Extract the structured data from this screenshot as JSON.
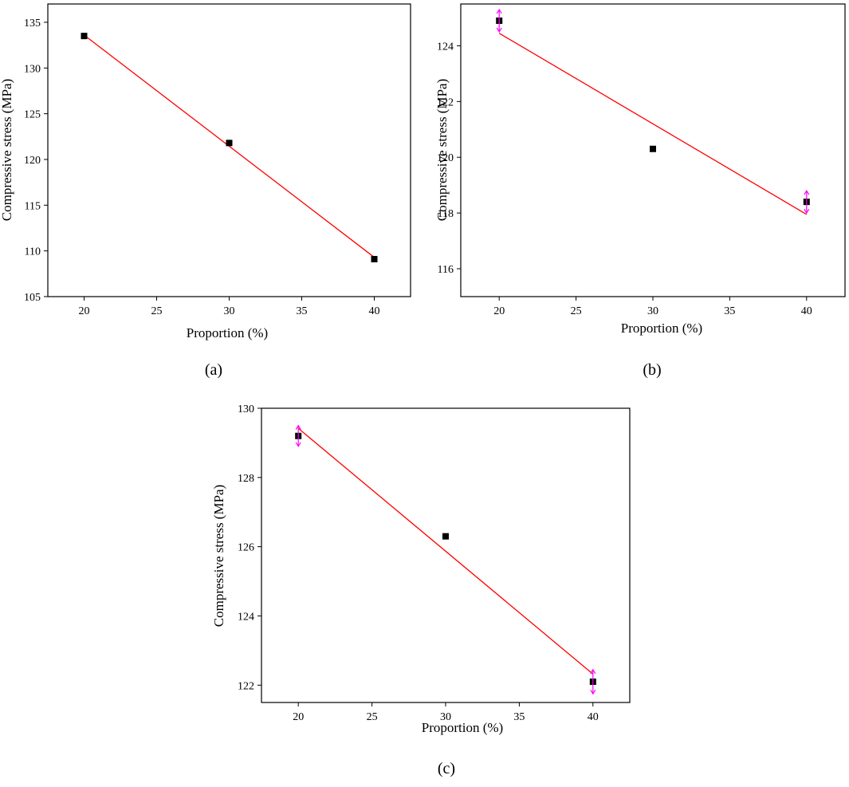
{
  "chart_data": [
    {
      "type": "scatter",
      "caption": "(a)",
      "xlabel": "Proportion (%)",
      "ylabel": "Compressive stress (MPa)",
      "xlim": [
        17.5,
        42.5
      ],
      "ylim": [
        105,
        137
      ],
      "xticks": [
        20,
        25,
        30,
        35,
        40
      ],
      "yticks": [
        105,
        110,
        115,
        120,
        125,
        130,
        135
      ],
      "grid": false,
      "series": [
        {
          "x": [
            20,
            30,
            40
          ],
          "y": [
            133.5,
            121.8,
            109.1
          ],
          "marker": "square",
          "color": "#000000"
        }
      ],
      "fit": {
        "x": [
          20,
          40
        ],
        "y": [
          133.6,
          109.3
        ],
        "color": "#ff0000"
      },
      "error_bars": []
    },
    {
      "type": "scatter",
      "caption": "(b)",
      "xlabel": "Proportion (%)",
      "ylabel": "Compressive stress (MPa)",
      "xlim": [
        17.5,
        42.5
      ],
      "ylim": [
        115,
        125.5
      ],
      "xticks": [
        20,
        25,
        30,
        35,
        40
      ],
      "yticks": [
        116,
        118,
        120,
        122,
        124
      ],
      "grid": false,
      "series": [
        {
          "x": [
            20,
            30,
            40
          ],
          "y": [
            124.9,
            120.3,
            118.4
          ],
          "marker": "square",
          "color": "#000000"
        }
      ],
      "fit": {
        "x": [
          20,
          40
        ],
        "y": [
          124.45,
          117.95
        ],
        "color": "#ff0000"
      },
      "error_bars": [
        {
          "x": 20,
          "low": 124.5,
          "high": 125.3
        },
        {
          "x": 40,
          "low": 118.0,
          "high": 118.8
        }
      ],
      "error_bar_color": "#ff00ff"
    },
    {
      "type": "scatter",
      "caption": "(c)",
      "xlabel": "Proportion (%)",
      "ylabel": "Compressive stress (MPa)",
      "xlim": [
        17.5,
        42.5
      ],
      "ylim": [
        121.5,
        130
      ],
      "xticks": [
        20,
        25,
        30,
        35,
        40
      ],
      "yticks": [
        122,
        124,
        126,
        128,
        130
      ],
      "grid": false,
      "series": [
        {
          "x": [
            20,
            30,
            40
          ],
          "y": [
            129.2,
            126.3,
            122.1
          ],
          "marker": "square",
          "color": "#000000"
        }
      ],
      "fit": {
        "x": [
          20,
          40
        ],
        "y": [
          129.42,
          122.32
        ],
        "color": "#ff0000"
      },
      "error_bars": [
        {
          "x": 20,
          "low": 128.9,
          "high": 129.5
        },
        {
          "x": 40,
          "low": 121.75,
          "high": 122.45
        }
      ],
      "error_bar_color": "#ff00ff"
    }
  ]
}
